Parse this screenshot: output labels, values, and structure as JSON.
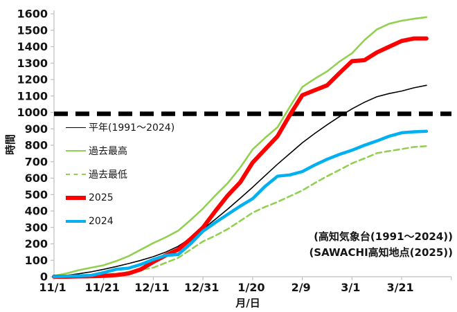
{
  "chart_data": {
    "type": "line",
    "title": "",
    "xlabel": "月/日",
    "ylabel": "時間",
    "ylim": [
      0,
      1600
    ],
    "ytick_step": 100,
    "ytick_labels": [
      0,
      100,
      200,
      300,
      400,
      500,
      600,
      700,
      800,
      900,
      1000,
      1100,
      1200,
      1300,
      1400,
      1500,
      1600
    ],
    "xtick_days": [
      0,
      20,
      40,
      60,
      80,
      100,
      120,
      140
    ],
    "xtick_labels": [
      "11/1",
      "11/21",
      "12/11",
      "12/31",
      "1/20",
      "2/9",
      "3/1",
      "3/21"
    ],
    "x_day_max": 160,
    "grid": false,
    "legend_position": "inside-left",
    "axis_color": "#BFBFBF",
    "target_line": {
      "value": 1000,
      "color": "#000000",
      "style": "dashed",
      "width": 6.5
    },
    "dates": [
      "11/1",
      "11/6",
      "11/11",
      "11/16",
      "11/21",
      "11/26",
      "12/1",
      "12/6",
      "12/11",
      "12/16",
      "12/21",
      "12/26",
      "12/31",
      "1/5",
      "1/10",
      "1/15",
      "1/20",
      "1/25",
      "1/30",
      "2/4",
      "2/9",
      "2/14",
      "2/19",
      "2/24",
      "3/1",
      "3/6",
      "3/11",
      "3/16",
      "3/21",
      "3/26",
      "3/31"
    ],
    "x_days": [
      0,
      5,
      10,
      15,
      20,
      25,
      30,
      35,
      40,
      45,
      50,
      55,
      60,
      65,
      70,
      75,
      80,
      85,
      90,
      95,
      100,
      105,
      110,
      115,
      120,
      125,
      130,
      135,
      140,
      145,
      150
    ],
    "series": [
      {
        "key": "normal",
        "legend_label": "平年(1991〜2024)",
        "color": "#000000",
        "line_width": 1.6,
        "dash": false,
        "values": [
          0,
          8,
          18,
          30,
          45,
          62,
          80,
          100,
          122,
          150,
          185,
          235,
          290,
          350,
          412,
          478,
          545,
          615,
          685,
          750,
          815,
          872,
          925,
          975,
          1022,
          1062,
          1095,
          1115,
          1130,
          1150,
          1165
        ]
      },
      {
        "key": "record-high",
        "legend_label": "過去最高",
        "color": "#92D050",
        "line_width": 2.6,
        "dash": false,
        "values": [
          5,
          20,
          40,
          55,
          70,
          95,
          125,
          165,
          205,
          240,
          280,
          345,
          415,
          495,
          570,
          665,
          775,
          845,
          910,
          1035,
          1155,
          1205,
          1250,
          1310,
          1360,
          1440,
          1505,
          1540,
          1558,
          1570,
          1580
        ]
      },
      {
        "key": "record-low",
        "legend_label": "過去最低",
        "color": "#92D050",
        "line_width": 2.6,
        "dash": true,
        "values": [
          0,
          0,
          2,
          4,
          8,
          15,
          30,
          42,
          55,
          85,
          115,
          165,
          215,
          250,
          290,
          340,
          390,
          425,
          455,
          490,
          525,
          570,
          612,
          650,
          690,
          720,
          752,
          765,
          777,
          790,
          795
        ]
      },
      {
        "key": "year-2025",
        "legend_label": "2025",
        "color": "#FF0000",
        "line_width": 6,
        "dash": false,
        "values": [
          0,
          0,
          2,
          3,
          5,
          10,
          20,
          45,
          90,
          130,
          165,
          230,
          300,
          400,
          495,
          575,
          695,
          775,
          855,
          985,
          1105,
          1135,
          1165,
          1240,
          1312,
          1318,
          1365,
          1400,
          1435,
          1450,
          1450
        ]
      },
      {
        "key": "year-2024",
        "legend_label": "2024",
        "color": "#00B0F0",
        "line_width": 4.5,
        "dash": false,
        "values": [
          0,
          3,
          5,
          8,
          25,
          45,
          52,
          75,
          105,
          130,
          135,
          200,
          277,
          330,
          380,
          430,
          475,
          550,
          612,
          620,
          640,
          680,
          715,
          745,
          770,
          800,
          826,
          855,
          876,
          882,
          885
        ]
      }
    ]
  },
  "annotations": [
    "(高知気象台(1991〜2024))",
    "(SAWACHI高知地点(2025))"
  ]
}
